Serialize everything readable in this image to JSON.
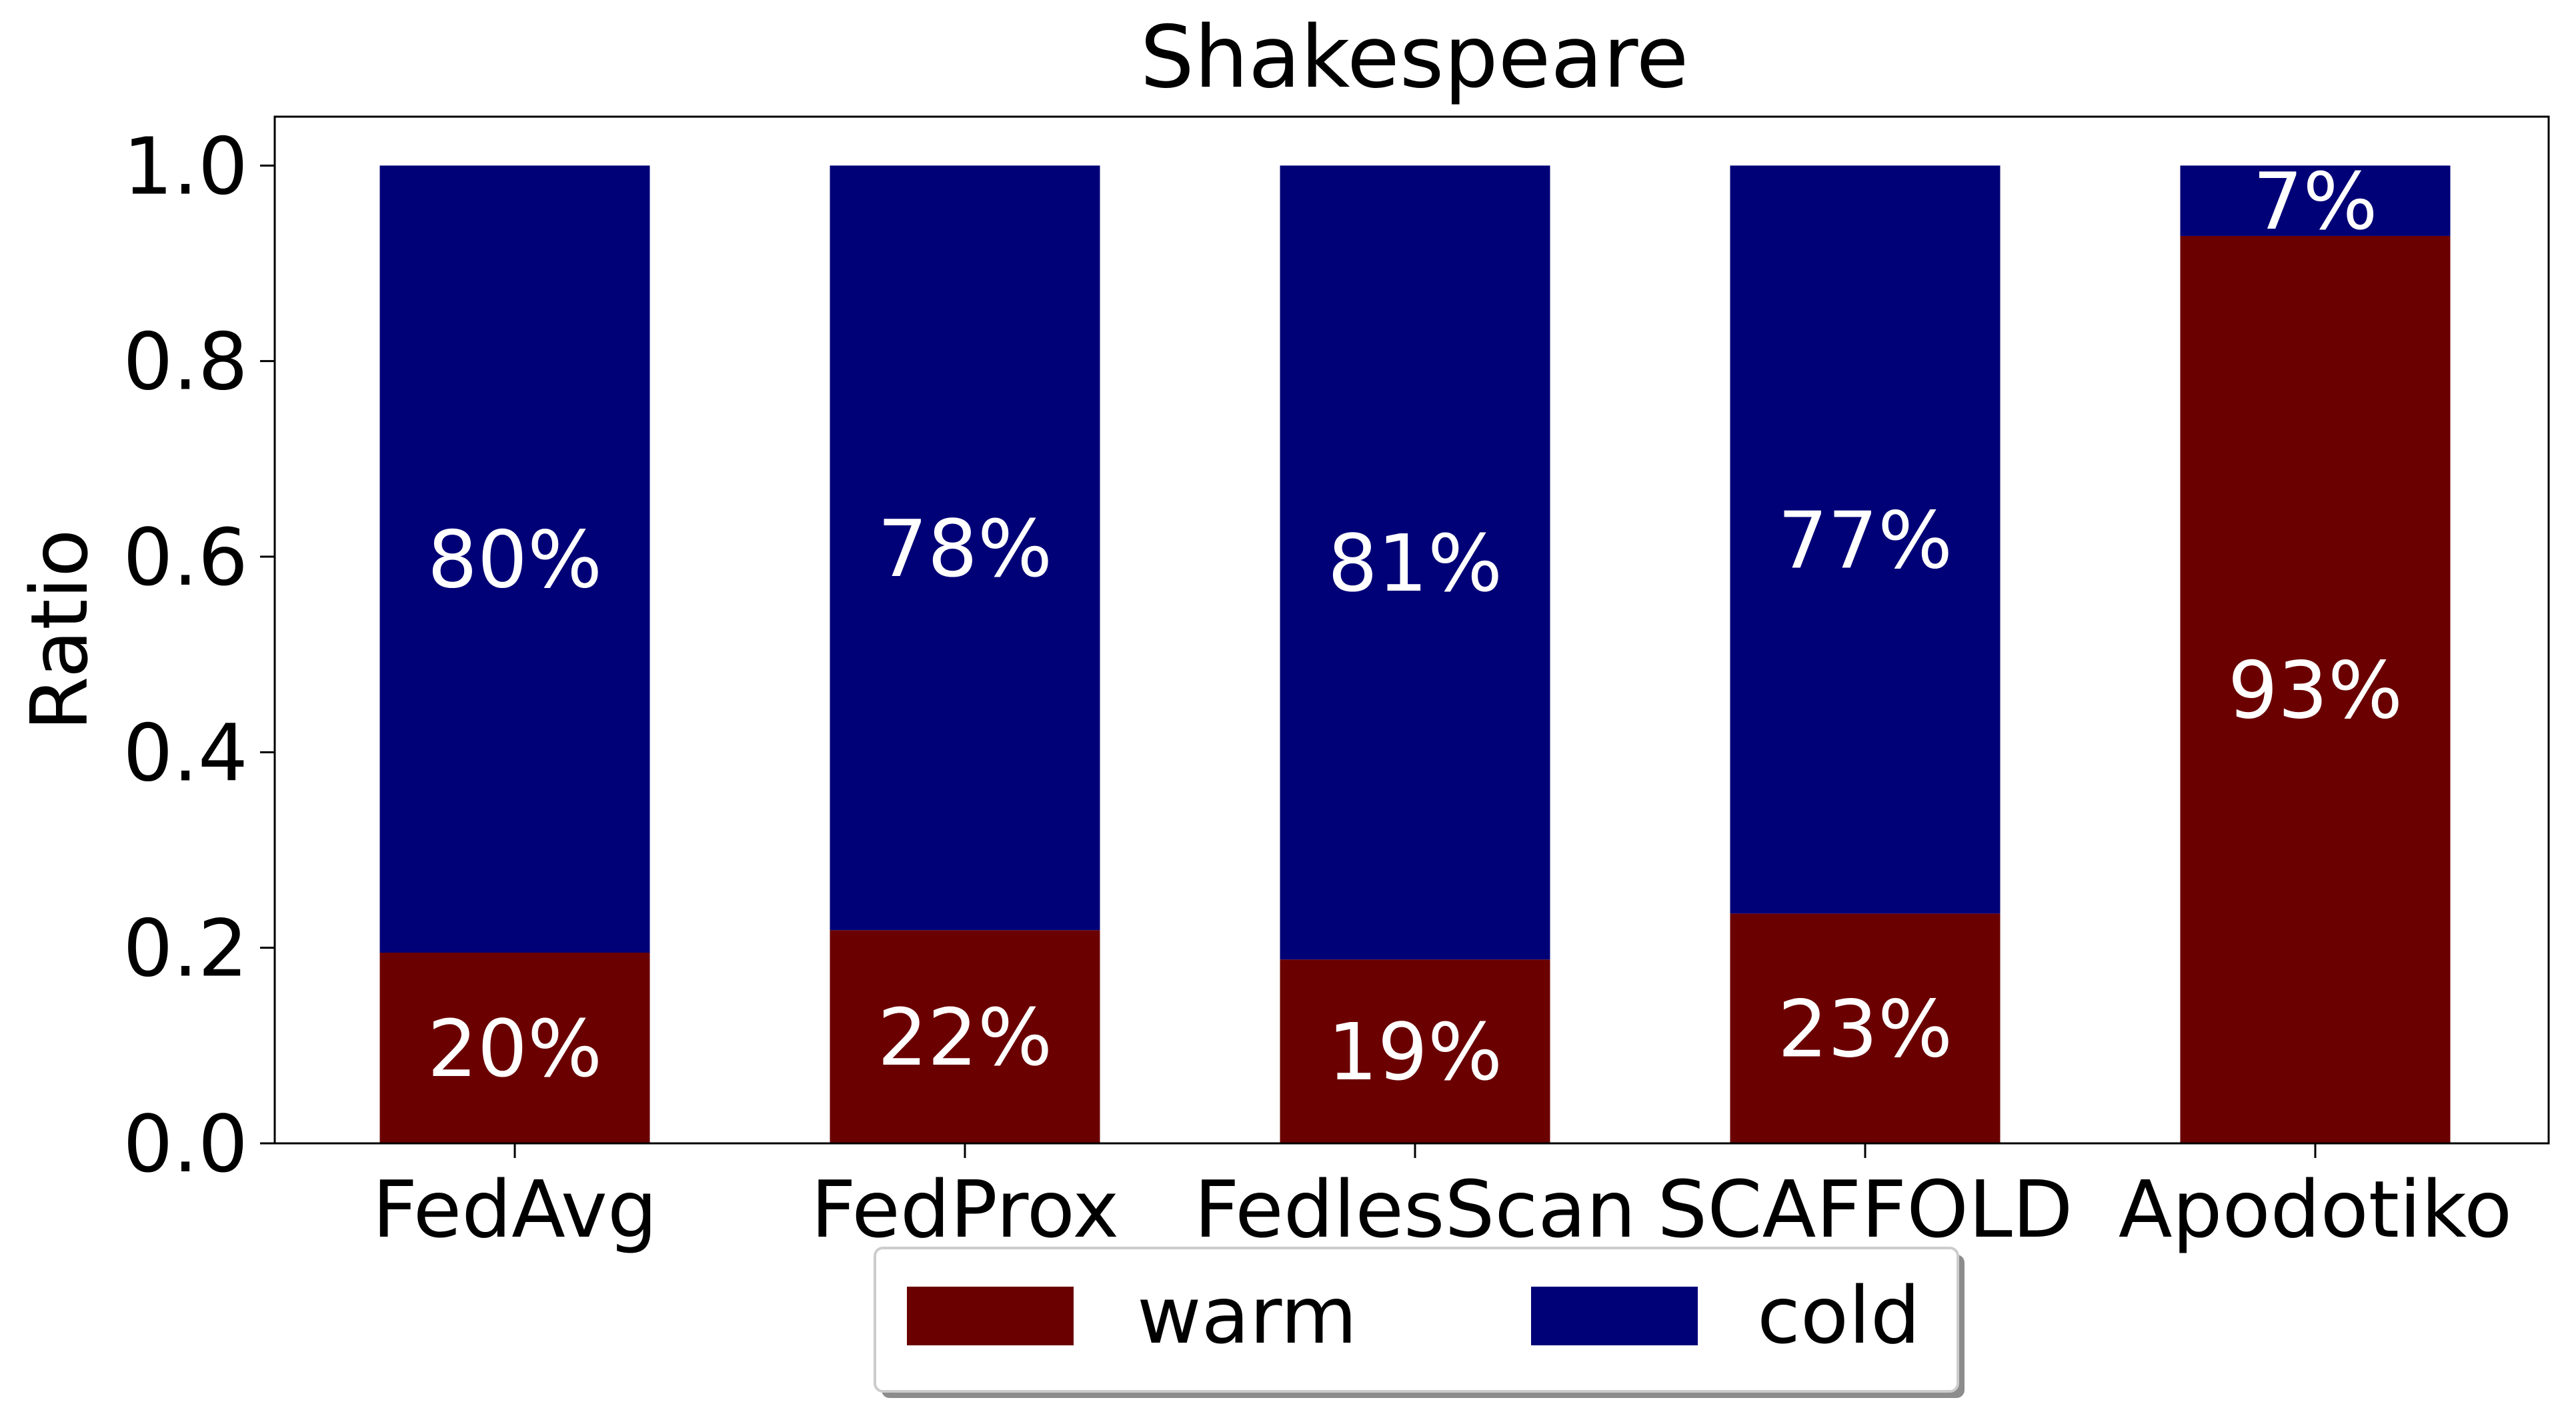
{
  "chart_data": {
    "type": "bar",
    "stacked": true,
    "title": "Shakespeare",
    "xlabel": "",
    "ylabel": "Ratio",
    "ylim": [
      0,
      1.05
    ],
    "yticks": [
      "0.0",
      "0.2",
      "0.4",
      "0.6",
      "0.8",
      "1.0"
    ],
    "categories": [
      "FedAvg",
      "FedProx",
      "FedlesScan",
      "SCAFFOLD",
      "Apodotiko"
    ],
    "series": [
      {
        "name": "warm",
        "color": "#6b0000",
        "values": [
          0.195,
          0.218,
          0.188,
          0.235,
          0.928
        ],
        "labels": [
          "20%",
          "22%",
          "19%",
          "23%",
          "93%"
        ]
      },
      {
        "name": "cold",
        "color": "#000077",
        "values": [
          0.805,
          0.782,
          0.812,
          0.765,
          0.072
        ],
        "labels": [
          "80%",
          "78%",
          "81%",
          "77%",
          "7%"
        ]
      }
    ],
    "grid": false,
    "legend_position": "bottom-center"
  }
}
